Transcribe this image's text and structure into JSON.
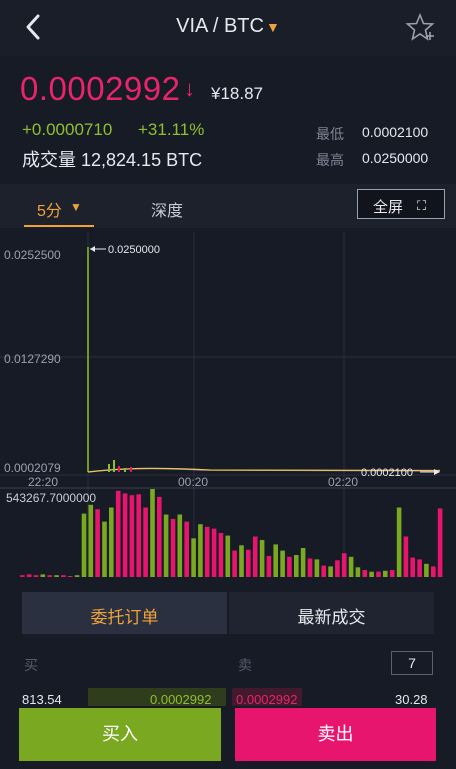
{
  "header": {
    "pair": "VIA / BTC",
    "pair_caret": "▼",
    "back_icon": "chevron-left-icon",
    "fav_icon": "star-plus-icon"
  },
  "price": {
    "last": "0.0002992",
    "arrow": "↓",
    "cny": "¥18.87",
    "change": "+0.0000710",
    "change_pct": "+31.11%",
    "volume": "成交量 12,824.15 BTC"
  },
  "stats": {
    "low_label": "最低",
    "low": "0.0002100",
    "high_label": "最高",
    "high": "0.0250000"
  },
  "tabs": {
    "interval": "5分",
    "depth": "深度",
    "fullscreen": "全屏"
  },
  "chart_data": {
    "type": "candlestick",
    "y_ticks": [
      "0.0252500",
      "0.0127290",
      "0.0002079"
    ],
    "x_ticks": [
      "22:20",
      "00:20",
      "02:20"
    ],
    "max_marker": "0.0250000",
    "min_marker": "0.0002100",
    "volume_max": "543267.7000000",
    "volume_colors": [
      "#7aa821",
      "#e8156e"
    ],
    "volume": [
      [
        "#e8156e",
        0.02
      ],
      [
        "#e8156e",
        0.03
      ],
      [
        "#e8156e",
        0.02
      ],
      [
        "#7aa821",
        0.03
      ],
      [
        "#e8156e",
        0.02
      ],
      [
        "#7aa821",
        0.02
      ],
      [
        "#e8156e",
        0.02
      ],
      [
        "#e8156e",
        0.01
      ],
      [
        "#7aa821",
        0.02
      ],
      [
        "#7aa821",
        0.72
      ],
      [
        "#7aa821",
        0.82
      ],
      [
        "#e8156e",
        0.77
      ],
      [
        "#7aa821",
        0.63
      ],
      [
        "#7aa821",
        0.79
      ],
      [
        "#e8156e",
        0.98
      ],
      [
        "#e8156e",
        0.95
      ],
      [
        "#e8156e",
        0.93
      ],
      [
        "#e8156e",
        0.94
      ],
      [
        "#e8156e",
        0.79
      ],
      [
        "#7aa821",
        1.0
      ],
      [
        "#e8156e",
        0.91
      ],
      [
        "#7aa821",
        0.71
      ],
      [
        "#e8156e",
        0.66
      ],
      [
        "#7aa821",
        0.71
      ],
      [
        "#e8156e",
        0.63
      ],
      [
        "#7aa821",
        0.44
      ],
      [
        "#7aa821",
        0.6
      ],
      [
        "#e8156e",
        0.57
      ],
      [
        "#e8156e",
        0.55
      ],
      [
        "#e8156e",
        0.5
      ],
      [
        "#7aa821",
        0.47
      ],
      [
        "#e8156e",
        0.3
      ],
      [
        "#7aa821",
        0.36
      ],
      [
        "#e8156e",
        0.31
      ],
      [
        "#e8156e",
        0.46
      ],
      [
        "#7aa821",
        0.42
      ],
      [
        "#e8156e",
        0.24
      ],
      [
        "#7aa821",
        0.37
      ],
      [
        "#7aa821",
        0.3
      ],
      [
        "#e8156e",
        0.23
      ],
      [
        "#7aa821",
        0.25
      ],
      [
        "#7aa821",
        0.33
      ],
      [
        "#e8156e",
        0.21
      ],
      [
        "#7aa821",
        0.2
      ],
      [
        "#e8156e",
        0.13
      ],
      [
        "#7aa821",
        0.12
      ],
      [
        "#e8156e",
        0.19
      ],
      [
        "#e8156e",
        0.27
      ],
      [
        "#7aa821",
        0.23
      ],
      [
        "#7aa821",
        0.11
      ],
      [
        "#e8156e",
        0.08
      ],
      [
        "#7aa821",
        0.06
      ],
      [
        "#e8156e",
        0.06
      ],
      [
        "#7aa821",
        0.07
      ],
      [
        "#e8156e",
        0.08
      ],
      [
        "#7aa821",
        0.79
      ],
      [
        "#e8156e",
        0.46
      ],
      [
        "#e8156e",
        0.22
      ],
      [
        "#e8156e",
        0.2
      ],
      [
        "#7aa821",
        0.15
      ],
      [
        "#e8156e",
        0.12
      ],
      [
        "#e8156e",
        0.78
      ]
    ]
  },
  "panel": {
    "orders_tab": "委托订单",
    "trades_tab": "最新成交",
    "buy_header": "买",
    "sell_header": "卖",
    "depth_count": "7",
    "row": {
      "buy_amount": "813.54",
      "buy_price": "0.0002992",
      "sell_price": "0.0002992",
      "sell_amount": "30.28"
    }
  },
  "actions": {
    "buy": "买入",
    "sell": "卖出"
  }
}
